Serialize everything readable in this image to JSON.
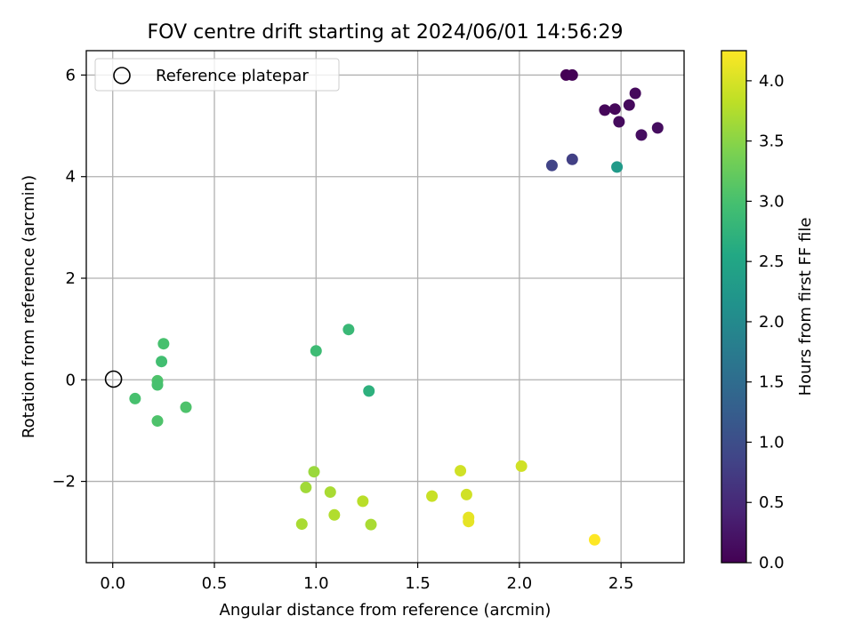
{
  "chart_data": {
    "type": "scatter",
    "title": "FOV centre drift starting at 2024/06/01 14:56:29",
    "xlabel": "Angular distance from reference (arcmin)",
    "ylabel": "Rotation from reference (arcmin)",
    "xlim": [
      -0.13,
      2.81
    ],
    "ylim": [
      -3.6,
      6.48
    ],
    "xticks": [
      {
        "value": 0.0,
        "label": "0.0"
      },
      {
        "value": 0.5,
        "label": "0.5"
      },
      {
        "value": 1.0,
        "label": "1.0"
      },
      {
        "value": 1.5,
        "label": "1.5"
      },
      {
        "value": 2.0,
        "label": "2.0"
      },
      {
        "value": 2.5,
        "label": "2.5"
      }
    ],
    "yticks": [
      {
        "value": -2,
        "label": "−2"
      },
      {
        "value": 0,
        "label": "0"
      },
      {
        "value": 2,
        "label": "2"
      },
      {
        "value": 4,
        "label": "4"
      },
      {
        "value": 6,
        "label": "6"
      }
    ],
    "grid": true,
    "legend": {
      "position": "top-left",
      "entries": [
        {
          "label": "Reference platepar",
          "marker": "open-circle"
        }
      ]
    },
    "reference_point": {
      "x": 0.0,
      "y": 0.0
    },
    "colorbar": {
      "label": "Hours from first FF file",
      "colormap": "viridis",
      "min": 0.0,
      "max": 4.25,
      "ticks": [
        {
          "value": 0.0,
          "label": "0.0"
        },
        {
          "value": 0.5,
          "label": "0.5"
        },
        {
          "value": 1.0,
          "label": "1.0"
        },
        {
          "value": 1.5,
          "label": "1.5"
        },
        {
          "value": 2.0,
          "label": "2.0"
        },
        {
          "value": 2.5,
          "label": "2.5"
        },
        {
          "value": 3.0,
          "label": "3.0"
        },
        {
          "value": 3.5,
          "label": "3.5"
        },
        {
          "value": 4.0,
          "label": "4.0"
        }
      ]
    },
    "points": [
      {
        "x": 2.23,
        "y": 6.0,
        "c": 0.0
      },
      {
        "x": 2.26,
        "y": 6.0,
        "c": 0.03
      },
      {
        "x": 2.57,
        "y": 5.64,
        "c": 0.1
      },
      {
        "x": 2.42,
        "y": 5.31,
        "c": 0.06
      },
      {
        "x": 2.47,
        "y": 5.33,
        "c": 0.08
      },
      {
        "x": 2.54,
        "y": 5.41,
        "c": 0.1
      },
      {
        "x": 2.49,
        "y": 5.08,
        "c": 0.12
      },
      {
        "x": 2.68,
        "y": 4.96,
        "c": 0.14
      },
      {
        "x": 2.6,
        "y": 4.82,
        "c": 0.15
      },
      {
        "x": 2.16,
        "y": 4.22,
        "c": 0.85
      },
      {
        "x": 2.26,
        "y": 4.34,
        "c": 0.8
      },
      {
        "x": 2.48,
        "y": 4.19,
        "c": 2.3
      },
      {
        "x": 1.16,
        "y": 0.99,
        "c": 2.85
      },
      {
        "x": 1.0,
        "y": 0.57,
        "c": 2.9
      },
      {
        "x": 1.26,
        "y": -0.22,
        "c": 2.7
      },
      {
        "x": 0.25,
        "y": 0.71,
        "c": 3.0
      },
      {
        "x": 0.24,
        "y": 0.36,
        "c": 2.95
      },
      {
        "x": 0.11,
        "y": -0.37,
        "c": 3.0
      },
      {
        "x": 0.22,
        "y": -0.02,
        "c": 3.05
      },
      {
        "x": 0.22,
        "y": -0.1,
        "c": 3.0
      },
      {
        "x": 0.36,
        "y": -0.54,
        "c": 3.05
      },
      {
        "x": 0.22,
        "y": -0.81,
        "c": 3.05
      },
      {
        "x": 0.99,
        "y": -1.81,
        "c": 3.6
      },
      {
        "x": 0.95,
        "y": -2.12,
        "c": 3.65
      },
      {
        "x": 1.07,
        "y": -2.21,
        "c": 3.7
      },
      {
        "x": 1.23,
        "y": -2.39,
        "c": 3.8
      },
      {
        "x": 1.09,
        "y": -2.66,
        "c": 3.75
      },
      {
        "x": 0.93,
        "y": -2.84,
        "c": 3.7
      },
      {
        "x": 1.27,
        "y": -2.85,
        "c": 3.7
      },
      {
        "x": 1.57,
        "y": -2.29,
        "c": 3.9
      },
      {
        "x": 1.71,
        "y": -1.79,
        "c": 3.95
      },
      {
        "x": 1.74,
        "y": -2.26,
        "c": 3.95
      },
      {
        "x": 2.01,
        "y": -1.7,
        "c": 3.95
      },
      {
        "x": 1.75,
        "y": -2.71,
        "c": 4.1
      },
      {
        "x": 1.75,
        "y": -2.79,
        "c": 4.1
      },
      {
        "x": 2.37,
        "y": -3.15,
        "c": 4.25
      }
    ]
  }
}
